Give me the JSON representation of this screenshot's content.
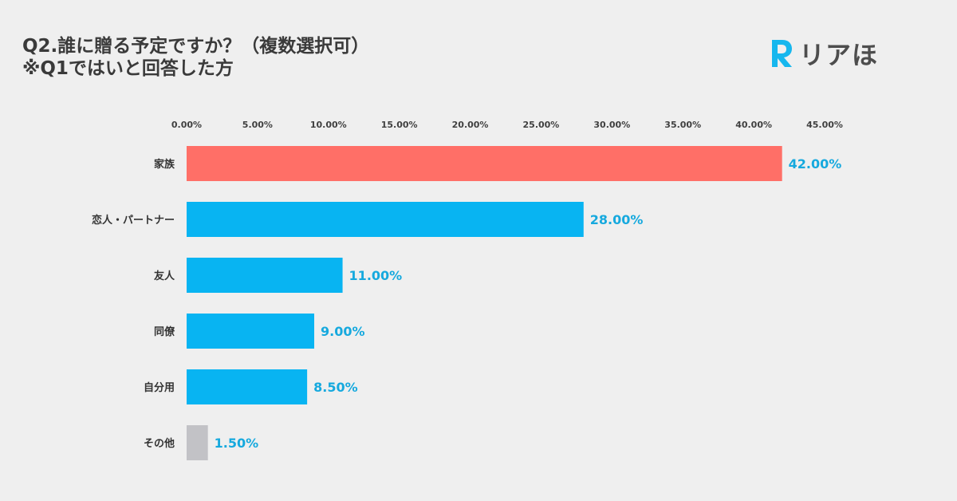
{
  "header": {
    "title_line1": "Q2.誰に贈る予定ですか？（複数選択可）",
    "title_line2": "※Q1ではいと回答した方"
  },
  "logo": {
    "text": "リアほ",
    "icon": "r-letter-logo-icon",
    "color": "#16b7ee"
  },
  "chart_data": {
    "type": "bar",
    "orientation": "horizontal",
    "categories": [
      "家族",
      "恋人・パートナー",
      "友人",
      "同僚",
      "自分用",
      "その他"
    ],
    "values": [
      42.0,
      28.0,
      11.0,
      9.0,
      8.5,
      1.5
    ],
    "value_labels": [
      "42.00%",
      "28.00%",
      "11.00%",
      "9.00%",
      "8.50%",
      "1.50%"
    ],
    "bar_colors": [
      "#ff6f67",
      "#08b4f2",
      "#08b4f2",
      "#08b4f2",
      "#08b4f2",
      "#c2c2c6"
    ],
    "value_label_color": "#16a9de",
    "xlim": [
      0,
      45
    ],
    "xticks": [
      "0.00%",
      "5.00%",
      "10.00%",
      "15.00%",
      "20.00%",
      "25.00%",
      "30.00%",
      "35.00%",
      "40.00%",
      "45.00%"
    ],
    "axis_position": "top",
    "grid": false
  }
}
